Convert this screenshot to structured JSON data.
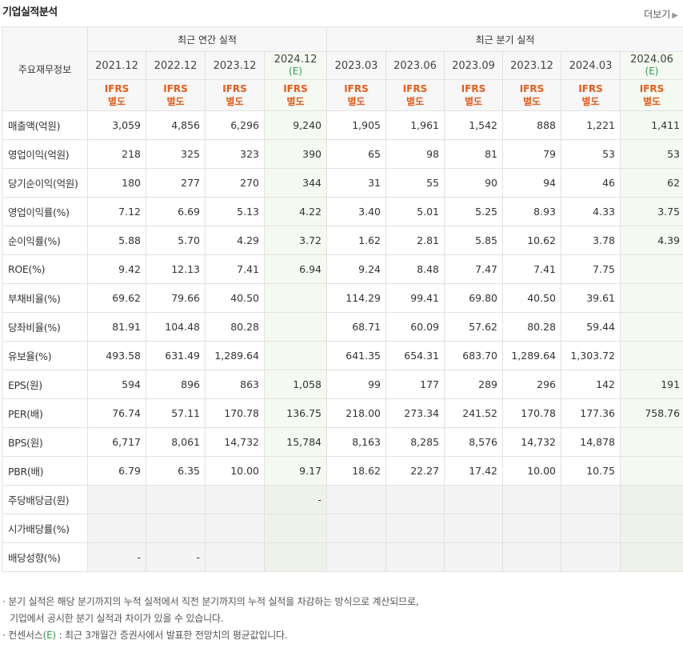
{
  "header": {
    "title": "기업실적분석",
    "more_label": "더보기"
  },
  "table": {
    "corner_label": "주요재무정보",
    "group_annual": "최근 연간 실적",
    "group_quarter": "최근 분기 실적",
    "annual_periods": [
      {
        "label": "2021.12",
        "est": ""
      },
      {
        "label": "2022.12",
        "est": ""
      },
      {
        "label": "2023.12",
        "est": ""
      },
      {
        "label": "2024.12",
        "est": "(E)"
      }
    ],
    "quarter_periods": [
      {
        "label": "2023.03",
        "est": ""
      },
      {
        "label": "2023.06",
        "est": ""
      },
      {
        "label": "2023.09",
        "est": ""
      },
      {
        "label": "2023.12",
        "est": ""
      },
      {
        "label": "2024.03",
        "est": ""
      },
      {
        "label": "2024.06",
        "est": "(E)"
      }
    ],
    "standard_line1": "IFRS",
    "standard_line2": "별도",
    "rows": [
      {
        "label": "매출액(억원)",
        "values": [
          "3,059",
          "4,856",
          "6,296",
          "9,240",
          "1,905",
          "1,961",
          "1,542",
          "888",
          "1,221",
          "1,411"
        ]
      },
      {
        "label": "영업이익(억원)",
        "values": [
          "218",
          "325",
          "323",
          "390",
          "65",
          "98",
          "81",
          "79",
          "53",
          "53"
        ]
      },
      {
        "label": "당기순이익(억원)",
        "values": [
          "180",
          "277",
          "270",
          "344",
          "31",
          "55",
          "90",
          "94",
          "46",
          "62"
        ]
      },
      {
        "label": "영업이익률(%)",
        "values": [
          "7.12",
          "6.69",
          "5.13",
          "4.22",
          "3.40",
          "5.01",
          "5.25",
          "8.93",
          "4.33",
          "3.75"
        ]
      },
      {
        "label": "순이익률(%)",
        "values": [
          "5.88",
          "5.70",
          "4.29",
          "3.72",
          "1.62",
          "2.81",
          "5.85",
          "10.62",
          "3.78",
          "4.39"
        ]
      },
      {
        "label": "ROE(%)",
        "values": [
          "9.42",
          "12.13",
          "7.41",
          "6.94",
          "9.24",
          "8.48",
          "7.47",
          "7.41",
          "7.75",
          ""
        ]
      },
      {
        "label": "부채비율(%)",
        "values": [
          "69.62",
          "79.66",
          "40.50",
          "",
          "114.29",
          "99.41",
          "69.80",
          "40.50",
          "39.61",
          ""
        ]
      },
      {
        "label": "당좌비율(%)",
        "values": [
          "81.91",
          "104.48",
          "80.28",
          "",
          "68.71",
          "60.09",
          "57.62",
          "80.28",
          "59.44",
          ""
        ]
      },
      {
        "label": "유보율(%)",
        "values": [
          "493.58",
          "631.49",
          "1,289.64",
          "",
          "641.35",
          "654.31",
          "683.70",
          "1,289.64",
          "1,303.72",
          ""
        ]
      },
      {
        "label": "EPS(원)",
        "values": [
          "594",
          "896",
          "863",
          "1,058",
          "99",
          "177",
          "289",
          "296",
          "142",
          "191"
        ]
      },
      {
        "label": "PER(배)",
        "values": [
          "76.74",
          "57.11",
          "170.78",
          "136.75",
          "218.00",
          "273.34",
          "241.52",
          "170.78",
          "177.36",
          "758.76"
        ]
      },
      {
        "label": "BPS(원)",
        "values": [
          "6,717",
          "8,061",
          "14,732",
          "15,784",
          "8,163",
          "8,285",
          "8,576",
          "14,732",
          "14,878",
          ""
        ]
      },
      {
        "label": "PBR(배)",
        "values": [
          "6.79",
          "6.35",
          "10.00",
          "9.17",
          "18.62",
          "22.27",
          "17.42",
          "10.00",
          "10.75",
          ""
        ]
      },
      {
        "label": "주당배당금(원)",
        "values": [
          "",
          "",
          "",
          "-",
          "",
          "",
          "",
          "",
          "",
          ""
        ]
      },
      {
        "label": "시가배당률(%)",
        "values": [
          "",
          "",
          "",
          "",
          "",
          "",
          "",
          "",
          "",
          ""
        ]
      },
      {
        "label": "배당성향(%)",
        "values": [
          "-",
          "-",
          "",
          "",
          "",
          "",
          "",
          "",
          "",
          ""
        ]
      }
    ]
  },
  "notes": {
    "line1": "분기 실적은 해당 분기까지의 누적 실적에서 직전 분기까지의 누적 실적을 차감하는 방식으로 계산되므로,",
    "line2": "기업에서 공시한 분기 실적과 차이가 있을 수 있습니다.",
    "line3_prefix": "컨센서스",
    "line3_est": "(E)",
    "line3_suffix": " : 최근 3개월간 증권사에서 발표한 전망치의 평균값입니다."
  },
  "colors": {
    "estimate_green": "#2e9c4a",
    "ifrs_orange": "#e55c1a"
  }
}
